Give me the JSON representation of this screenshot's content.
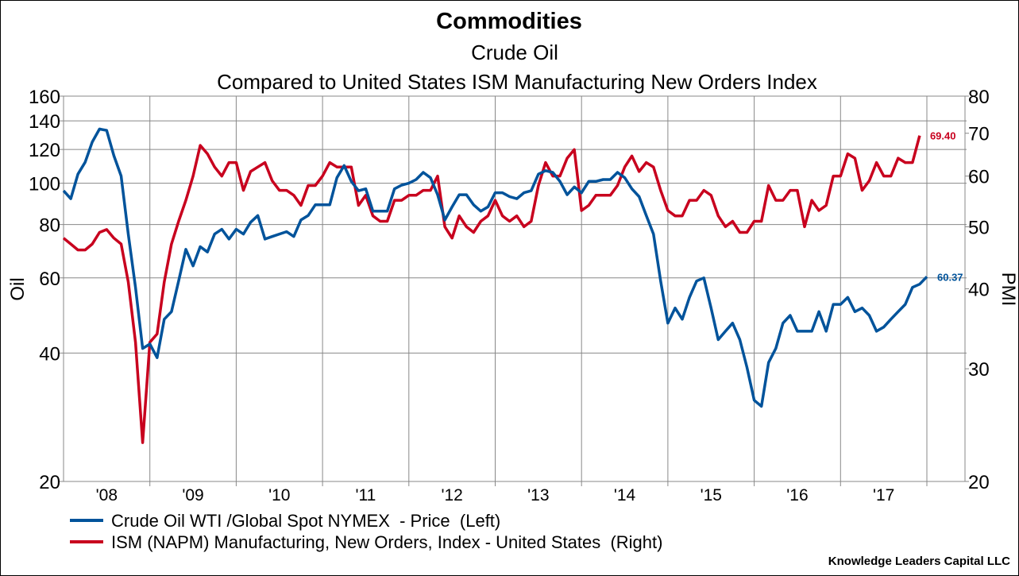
{
  "chart_data": {
    "type": "line",
    "title": "Commodities",
    "subtitle1": "Crude Oil",
    "subtitle2": "Compared to United States ISM Manufacturing New Orders Index",
    "ylabel_left": "Oil",
    "ylabel_right": "PMI",
    "left_axis": {
      "scale": "log",
      "range": [
        20,
        160
      ],
      "ticks": [
        20,
        40,
        60,
        80,
        100,
        120,
        140,
        160
      ]
    },
    "right_axis": {
      "scale": "log",
      "range": [
        20,
        80
      ],
      "ticks": [
        20,
        30,
        40,
        50,
        60,
        70,
        80
      ]
    },
    "x_range": [
      "2008-01",
      "2018-01"
    ],
    "x_tick_labels": [
      "'08",
      "'09",
      "'10",
      "'11",
      "'12",
      "'13",
      "'14",
      "'15",
      "'16",
      "'17"
    ],
    "grid": true,
    "legend_position": "bottom-left",
    "series": [
      {
        "name": "Crude Oil WTI /Global Spot NYMEX  - Price  (Left)",
        "axis": "left",
        "color": "#00539b",
        "frequency": "monthly from 2008-01",
        "last_label": "60.37",
        "values": [
          96,
          92,
          105,
          112,
          125,
          134,
          133,
          116,
          104,
          76,
          57,
          41,
          42,
          39,
          48,
          50,
          59,
          70,
          64,
          71,
          69,
          76,
          78,
          74,
          78,
          76,
          81,
          84,
          74,
          75,
          76,
          77,
          75,
          82,
          84,
          89,
          89,
          89,
          103,
          110,
          101,
          96,
          97,
          86,
          86,
          86,
          97,
          99,
          100,
          102,
          106,
          103,
          94,
          82,
          88,
          94,
          94,
          89,
          86,
          88,
          95,
          95,
          93,
          92,
          95,
          96,
          105,
          107,
          106,
          101,
          94,
          98,
          95,
          101,
          101,
          102,
          102,
          106,
          103,
          97,
          93,
          84,
          76,
          59,
          47,
          51,
          48,
          54,
          59,
          60,
          51,
          43,
          45,
          47,
          43,
          37,
          31,
          30,
          38,
          41,
          47,
          49,
          45,
          45,
          45,
          50,
          45,
          52,
          52,
          54,
          50,
          51,
          49,
          45,
          46,
          48,
          50,
          52,
          57,
          58,
          60.37
        ]
      },
      {
        "name": "ISM (NAPM) Manufacturing, New Orders, Index - United States  (Right)",
        "axis": "right",
        "color": "#c8001e",
        "frequency": "monthly from 2008-01",
        "last_label": "69.40",
        "values": [
          48,
          47,
          46,
          46,
          47,
          49,
          49.5,
          48,
          47,
          41,
          33,
          23,
          33,
          34,
          41,
          47,
          51,
          55,
          60,
          67,
          65,
          62,
          60,
          63,
          63,
          57,
          61,
          62,
          63,
          59,
          57,
          57,
          56,
          54,
          58,
          58,
          60,
          63,
          62,
          62,
          62,
          54,
          56,
          52,
          51,
          51,
          55,
          55,
          56,
          56,
          57,
          57,
          60,
          50,
          48,
          52,
          50,
          49,
          51,
          52,
          55,
          52,
          51,
          52,
          50,
          51,
          58,
          63,
          60,
          60,
          64,
          66,
          53,
          54,
          56,
          56,
          56,
          58,
          62,
          64.5,
          61,
          63,
          62,
          57,
          53,
          52,
          52,
          55,
          55,
          57,
          56,
          52,
          50,
          51,
          49,
          49,
          51,
          51,
          58,
          55,
          55,
          57,
          57,
          50,
          55,
          53,
          54,
          60,
          60,
          65,
          64,
          57,
          59,
          63,
          60,
          60,
          64,
          63,
          63,
          69.4
        ]
      }
    ]
  },
  "footer": "Knowledge Leaders Capital LLC"
}
